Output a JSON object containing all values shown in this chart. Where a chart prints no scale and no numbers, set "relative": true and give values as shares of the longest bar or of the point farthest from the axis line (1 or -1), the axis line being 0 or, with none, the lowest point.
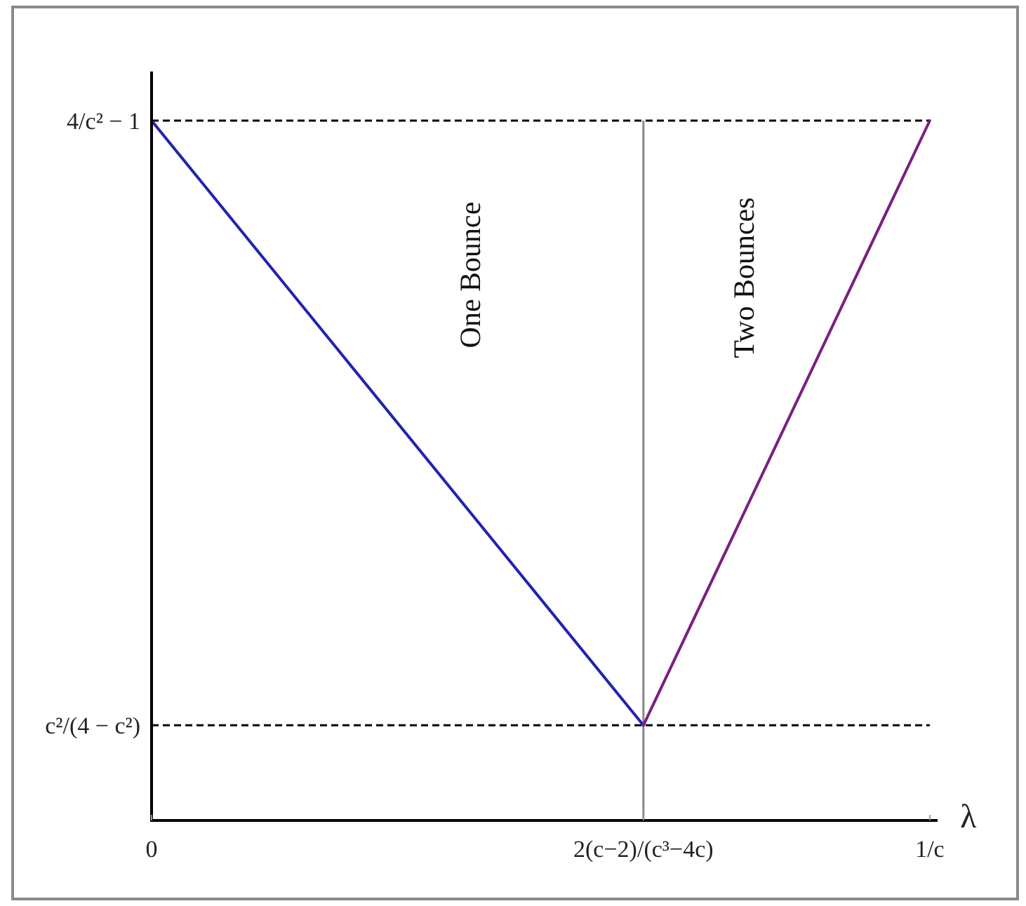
{
  "chart_data": {
    "type": "line",
    "relative": true,
    "xlabel": "λ",
    "xlim": [
      0,
      1.01
    ],
    "xticks": [
      0,
      {
        "value": 0.632,
        "label": "2(c−2)/(c³−4c)"
      },
      {
        "value": 1,
        "label": "1/c"
      }
    ],
    "line_style": "solid",
    "series": [
      {
        "color": "#2222b0",
        "x": [
          0,
          0.632
        ],
        "values": [
          1,
          0.136
        ]
      },
      {
        "color": "#7a1f80",
        "x": [
          0.632,
          1
        ],
        "values": [
          0.136,
          1
        ]
      }
    ],
    "ref_lines": [
      {
        "axis": "y",
        "value": 1,
        "label": "4/c² − 1",
        "line_style": "dashed",
        "color": "#000000"
      },
      {
        "axis": "y",
        "value": 0.136,
        "label": "c²/(4 − c²)",
        "line_style": "dashed",
        "color": "#000000"
      },
      {
        "axis": "x",
        "value": 0.632,
        "color": "#888888"
      }
    ],
    "annotations": [
      "One Bounce",
      "Two Bounces"
    ]
  }
}
